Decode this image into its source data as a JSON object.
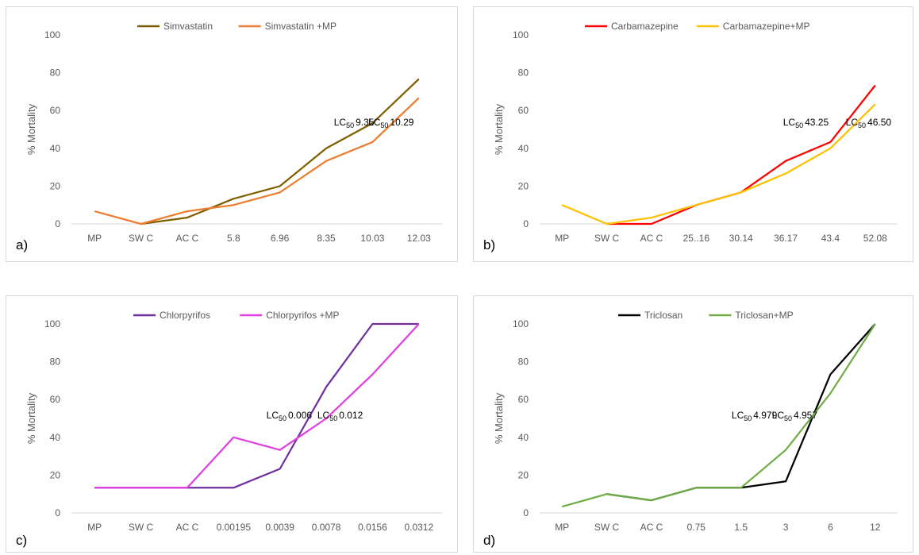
{
  "chart_data": [
    {
      "type": "line",
      "panel_label": "a)",
      "ylabel": "% Mortality",
      "ylim": [
        0,
        100
      ],
      "yticks": [
        0,
        20,
        40,
        60,
        80,
        100
      ],
      "categories": [
        "MP",
        "SW C",
        "AC C",
        "5.8",
        "6.96",
        "8.35",
        "10.03",
        "12.03"
      ],
      "legend_position": "top",
      "grid": false,
      "series": [
        {
          "name": "Simvastatin",
          "color": "#7f6000",
          "values": [
            null,
            0,
            3.3,
            13.3,
            20,
            40,
            53.3,
            76.7
          ]
        },
        {
          "name": "Simvastatin +MP",
          "color": "#ed7d31",
          "values": [
            6.7,
            0,
            6.7,
            10,
            16.7,
            33.3,
            43.3,
            66.7
          ]
        }
      ],
      "annotations": [
        {
          "prefix": "LC",
          "sub": "50",
          "value": "9.35",
          "x": 5.6,
          "y": 52
        },
        {
          "prefix": "LC",
          "sub": "50",
          "value": "10.29",
          "x": 6.4,
          "y": 52
        }
      ]
    },
    {
      "type": "line",
      "panel_label": "b)",
      "ylabel": "% Mortality",
      "ylim": [
        0,
        100
      ],
      "yticks": [
        0,
        20,
        40,
        60,
        80,
        100
      ],
      "categories": [
        "MP",
        "SW C",
        "AC C",
        "25..16",
        "30.14",
        "36.17",
        "43.4",
        "52.08"
      ],
      "legend_position": "top",
      "grid": false,
      "series": [
        {
          "name": "Carbamazepine",
          "color": "#ff0000",
          "values": [
            null,
            0,
            0,
            10,
            16.7,
            33.3,
            43.3,
            73.3
          ]
        },
        {
          "name": "Carbamazepine+MP",
          "color": "#ffc000",
          "values": [
            10,
            0,
            3.3,
            10,
            16.7,
            26.7,
            40,
            63.3
          ]
        }
      ],
      "annotations": [
        {
          "prefix": "LC",
          "sub": "50",
          "value": "43.25",
          "x": 5.45,
          "y": 52
        },
        {
          "prefix": "LC",
          "sub": "50",
          "value": "46.50",
          "x": 6.85,
          "y": 52
        }
      ]
    },
    {
      "type": "line",
      "panel_label": "c)",
      "ylabel": "% Mortality",
      "ylim": [
        0,
        100
      ],
      "yticks": [
        0,
        20,
        40,
        60,
        80,
        100
      ],
      "categories": [
        "MP",
        "SW C",
        "AC C",
        "0.00195",
        "0.0039",
        "0.0078",
        "0.0156",
        "0.0312"
      ],
      "legend_position": "top",
      "grid": false,
      "series": [
        {
          "name": "Chlorpyrifos",
          "color": "#7030a0",
          "values": [
            13.3,
            13.3,
            13.3,
            13.3,
            23.3,
            66.7,
            100,
            100
          ]
        },
        {
          "name": "Chlorpyrifos +MP",
          "color": "#e040e0",
          "values": [
            13.3,
            13.3,
            13.3,
            40,
            33.3,
            50,
            73.3,
            100
          ]
        }
      ],
      "annotations": [
        {
          "prefix": "LC",
          "sub": "50",
          "value": "0.006",
          "x": 4.2,
          "y": 50
        },
        {
          "prefix": "LC",
          "sub": "50",
          "value": "0.012",
          "x": 5.3,
          "y": 50
        }
      ]
    },
    {
      "type": "line",
      "panel_label": "d)",
      "ylabel": "% Mortality",
      "ylim": [
        0,
        100
      ],
      "yticks": [
        0,
        20,
        40,
        60,
        80,
        100
      ],
      "categories": [
        "MP",
        "SW C",
        "AC C",
        "0.75",
        "1.5",
        "3",
        "6",
        "12"
      ],
      "legend_position": "top",
      "grid": false,
      "series": [
        {
          "name": "Triclosan",
          "color": "#000000",
          "values": [
            null,
            10,
            6.7,
            13.3,
            13.3,
            16.7,
            73.3,
            100
          ]
        },
        {
          "name": "Triclosan+MP",
          "color": "#70ad47",
          "values": [
            3.3,
            10,
            6.7,
            13.3,
            13.3,
            33.3,
            63.3,
            100
          ]
        }
      ],
      "annotations": [
        {
          "prefix": "LC",
          "sub": "50",
          "value": "4.979",
          "x": 4.3,
          "y": 50
        },
        {
          "prefix": "LC",
          "sub": "50",
          "value": "4.957",
          "x": 5.2,
          "y": 50
        }
      ]
    }
  ]
}
